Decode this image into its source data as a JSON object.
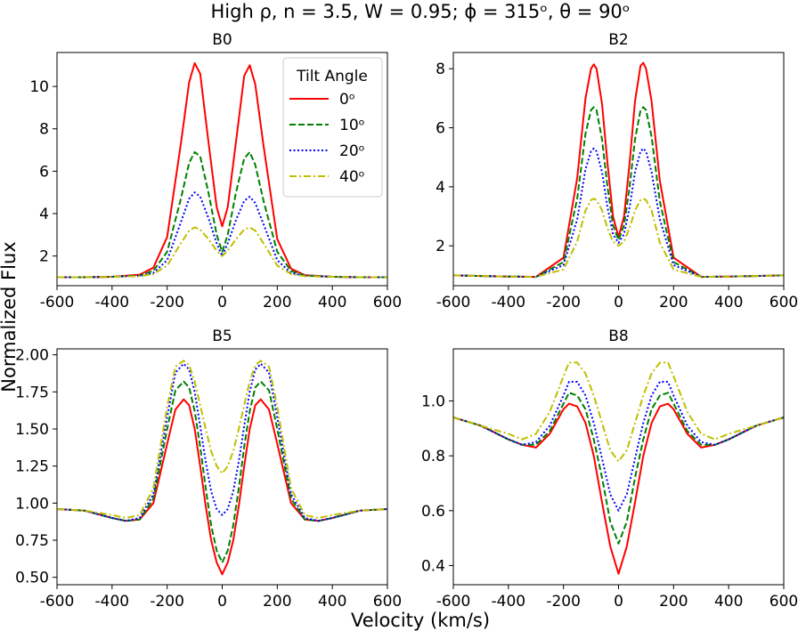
{
  "figure": {
    "suptitle": "High ρ, n = 3.5, W = 0.95; ϕ = 315ᵒ, θ = 90ᵒ",
    "xlabel": "Velocity (km/s)",
    "ylabel": "Normalized Flux"
  },
  "legend": {
    "title": "Tilt Angle",
    "entries": [
      "0ᵒ",
      "10ᵒ",
      "20ᵒ",
      "40ᵒ"
    ]
  },
  "colors": {
    "0": "#ff0000",
    "10": "#008000",
    "20": "#0000ff",
    "40": "#bfbf00"
  },
  "chart_data": [
    {
      "type": "line",
      "title": "B0",
      "xlim": [
        -600,
        600
      ],
      "ylim": [
        0.6,
        11.6
      ],
      "xticks": [
        -600,
        -400,
        -200,
        0,
        200,
        400,
        600
      ],
      "yticks": [
        2,
        4,
        6,
        8,
        10
      ],
      "ytick_labels": [
        "2",
        "4",
        "6",
        "8",
        "10"
      ],
      "x": [
        -600,
        -500,
        -400,
        -300,
        -250,
        -200,
        -150,
        -120,
        -100,
        -80,
        -50,
        -20,
        0,
        20,
        50,
        80,
        100,
        120,
        150,
        200,
        250,
        300,
        400,
        500,
        600
      ],
      "series": [
        {
          "name": "0ᵒ",
          "style": "solid",
          "values": [
            1.0,
            1.0,
            1.02,
            1.12,
            1.45,
            2.9,
            7.3,
            10.2,
            11.1,
            10.6,
            7.4,
            4.3,
            3.4,
            4.3,
            7.4,
            10.5,
            11.0,
            10.1,
            7.2,
            2.8,
            1.4,
            1.1,
            1.02,
            1.0,
            1.0
          ]
        },
        {
          "name": "10ᵒ",
          "style": "dashed",
          "values": [
            1.0,
            1.0,
            1.02,
            1.08,
            1.3,
            2.2,
            4.7,
            6.4,
            6.9,
            6.7,
            5.0,
            3.0,
            2.2,
            3.0,
            5.0,
            6.6,
            6.9,
            6.3,
            4.6,
            2.2,
            1.3,
            1.08,
            1.02,
            1.0,
            1.0
          ]
        },
        {
          "name": "20ᵒ",
          "style": "dotted",
          "values": [
            1.0,
            1.0,
            1.02,
            1.06,
            1.2,
            1.8,
            3.6,
            4.7,
            5.0,
            4.8,
            3.8,
            2.6,
            2.0,
            2.6,
            3.7,
            4.6,
            4.8,
            4.5,
            3.5,
            1.8,
            1.2,
            1.06,
            1.02,
            1.0,
            1.0
          ]
        },
        {
          "name": "40ᵒ",
          "style": "dashdot",
          "values": [
            1.0,
            1.0,
            1.02,
            1.05,
            1.15,
            1.55,
            2.6,
            3.2,
            3.35,
            3.25,
            2.8,
            2.25,
            2.0,
            2.25,
            2.8,
            3.25,
            3.35,
            3.2,
            2.6,
            1.55,
            1.15,
            1.05,
            1.02,
            1.0,
            1.0
          ]
        }
      ]
    },
    {
      "type": "line",
      "title": "B2",
      "xlim": [
        -600,
        600
      ],
      "ylim": [
        0.65,
        8.55
      ],
      "xticks": [
        -600,
        -400,
        -200,
        0,
        200,
        400,
        600
      ],
      "yticks": [
        2,
        4,
        6,
        8
      ],
      "ytick_labels": [
        "2",
        "4",
        "6",
        "8"
      ],
      "x": [
        -600,
        -500,
        -400,
        -300,
        -200,
        -150,
        -120,
        -100,
        -90,
        -80,
        -60,
        -40,
        -20,
        0,
        20,
        40,
        60,
        80,
        90,
        100,
        120,
        150,
        200,
        300,
        400,
        500,
        600
      ],
      "series": [
        {
          "name": "0ᵒ",
          "style": "solid",
          "values": [
            1.0,
            0.98,
            0.96,
            0.95,
            1.6,
            4.3,
            7.0,
            8.0,
            8.15,
            8.0,
            6.8,
            4.8,
            3.0,
            2.3,
            3.0,
            4.8,
            6.9,
            8.1,
            8.2,
            8.0,
            6.9,
            4.2,
            1.6,
            0.95,
            0.96,
            0.98,
            1.0
          ]
        },
        {
          "name": "10ᵒ",
          "style": "dashed",
          "values": [
            1.0,
            0.98,
            0.96,
            0.95,
            1.45,
            3.6,
            5.8,
            6.6,
            6.7,
            6.6,
            5.6,
            4.0,
            2.7,
            2.2,
            2.7,
            4.0,
            5.6,
            6.6,
            6.7,
            6.6,
            5.7,
            3.5,
            1.45,
            0.95,
            0.96,
            0.98,
            1.0
          ]
        },
        {
          "name": "20ᵒ",
          "style": "dotted",
          "values": [
            1.0,
            0.98,
            0.96,
            0.95,
            1.35,
            2.9,
            4.6,
            5.2,
            5.3,
            5.2,
            4.5,
            3.3,
            2.4,
            2.1,
            2.4,
            3.3,
            4.5,
            5.2,
            5.3,
            5.2,
            4.5,
            2.9,
            1.35,
            0.95,
            0.96,
            0.98,
            1.0
          ]
        },
        {
          "name": "40ᵒ",
          "style": "dashdot",
          "values": [
            1.0,
            0.98,
            0.96,
            0.95,
            1.2,
            2.15,
            3.2,
            3.55,
            3.6,
            3.55,
            3.2,
            2.6,
            2.15,
            2.0,
            2.15,
            2.6,
            3.2,
            3.55,
            3.6,
            3.55,
            3.2,
            2.1,
            1.2,
            0.95,
            0.96,
            0.98,
            1.0
          ]
        }
      ]
    },
    {
      "type": "line",
      "title": "B5",
      "xlim": [
        -600,
        600
      ],
      "ylim": [
        0.45,
        2.04
      ],
      "xticks": [
        -600,
        -400,
        -200,
        0,
        200,
        400,
        600
      ],
      "yticks": [
        0.5,
        0.75,
        1.0,
        1.25,
        1.5,
        1.75,
        2.0
      ],
      "ytick_labels": [
        "0.50",
        "0.75",
        "1.00",
        "1.25",
        "1.50",
        "1.75",
        "2.00"
      ],
      "x": [
        -600,
        -500,
        -400,
        -350,
        -300,
        -250,
        -200,
        -170,
        -140,
        -120,
        -100,
        -80,
        -60,
        -40,
        -20,
        0,
        20,
        40,
        60,
        80,
        100,
        120,
        140,
        170,
        200,
        250,
        300,
        350,
        400,
        500,
        600
      ],
      "series": [
        {
          "name": "0ᵒ",
          "style": "solid",
          "values": [
            0.96,
            0.95,
            0.9,
            0.88,
            0.89,
            1.0,
            1.4,
            1.63,
            1.7,
            1.66,
            1.5,
            1.25,
            0.98,
            0.75,
            0.6,
            0.52,
            0.6,
            0.75,
            0.98,
            1.25,
            1.5,
            1.66,
            1.7,
            1.63,
            1.4,
            1.0,
            0.89,
            0.88,
            0.9,
            0.95,
            0.96
          ]
        },
        {
          "name": "10ᵒ",
          "style": "dashed",
          "values": [
            0.96,
            0.95,
            0.9,
            0.88,
            0.89,
            1.03,
            1.5,
            1.76,
            1.82,
            1.78,
            1.62,
            1.38,
            1.1,
            0.85,
            0.68,
            0.6,
            0.68,
            0.85,
            1.1,
            1.38,
            1.62,
            1.78,
            1.82,
            1.76,
            1.5,
            1.03,
            0.89,
            0.88,
            0.9,
            0.95,
            0.96
          ]
        },
        {
          "name": "20ᵒ",
          "style": "dotted",
          "values": [
            0.96,
            0.95,
            0.9,
            0.88,
            0.9,
            1.06,
            1.58,
            1.88,
            1.94,
            1.9,
            1.75,
            1.52,
            1.28,
            1.08,
            0.96,
            0.92,
            0.96,
            1.08,
            1.28,
            1.52,
            1.75,
            1.9,
            1.94,
            1.88,
            1.58,
            1.06,
            0.9,
            0.88,
            0.9,
            0.95,
            0.96
          ]
        },
        {
          "name": "40ᵒ",
          "style": "dashdot",
          "values": [
            0.96,
            0.95,
            0.92,
            0.9,
            0.92,
            1.1,
            1.65,
            1.92,
            1.96,
            1.93,
            1.82,
            1.66,
            1.5,
            1.35,
            1.25,
            1.2,
            1.25,
            1.35,
            1.5,
            1.66,
            1.82,
            1.93,
            1.96,
            1.92,
            1.65,
            1.1,
            0.92,
            0.9,
            0.92,
            0.95,
            0.96
          ]
        }
      ]
    },
    {
      "type": "line",
      "title": "B8",
      "xlim": [
        -600,
        600
      ],
      "ylim": [
        0.33,
        1.19
      ],
      "xticks": [
        -600,
        -400,
        -200,
        0,
        200,
        400,
        600
      ],
      "yticks": [
        0.4,
        0.6,
        0.8,
        1.0
      ],
      "ytick_labels": [
        "0.4",
        "0.6",
        "0.8",
        "1.0"
      ],
      "x": [
        -600,
        -500,
        -400,
        -350,
        -300,
        -250,
        -200,
        -180,
        -150,
        -120,
        -90,
        -60,
        -30,
        0,
        30,
        60,
        90,
        120,
        150,
        180,
        200,
        250,
        300,
        350,
        400,
        500,
        600
      ],
      "series": [
        {
          "name": "0ᵒ",
          "style": "solid",
          "values": [
            0.94,
            0.91,
            0.86,
            0.84,
            0.83,
            0.88,
            0.97,
            0.99,
            0.98,
            0.92,
            0.8,
            0.63,
            0.47,
            0.37,
            0.47,
            0.63,
            0.8,
            0.92,
            0.98,
            0.99,
            0.97,
            0.88,
            0.83,
            0.84,
            0.86,
            0.91,
            0.94
          ]
        },
        {
          "name": "10ᵒ",
          "style": "dashed",
          "values": [
            0.94,
            0.91,
            0.86,
            0.84,
            0.84,
            0.89,
            0.99,
            1.03,
            1.02,
            0.97,
            0.86,
            0.72,
            0.56,
            0.48,
            0.56,
            0.72,
            0.86,
            0.97,
            1.02,
            1.03,
            0.99,
            0.89,
            0.84,
            0.84,
            0.86,
            0.91,
            0.94
          ]
        },
        {
          "name": "20ᵒ",
          "style": "dotted",
          "values": [
            0.94,
            0.91,
            0.86,
            0.84,
            0.85,
            0.91,
            1.02,
            1.07,
            1.07,
            1.02,
            0.92,
            0.79,
            0.66,
            0.6,
            0.66,
            0.79,
            0.92,
            1.02,
            1.07,
            1.07,
            1.02,
            0.91,
            0.85,
            0.84,
            0.86,
            0.91,
            0.94
          ]
        },
        {
          "name": "40ᵒ",
          "style": "dashdot",
          "values": [
            0.94,
            0.91,
            0.88,
            0.86,
            0.88,
            0.96,
            1.09,
            1.14,
            1.14,
            1.1,
            1.02,
            0.92,
            0.82,
            0.78,
            0.82,
            0.92,
            1.02,
            1.1,
            1.14,
            1.14,
            1.09,
            0.96,
            0.88,
            0.86,
            0.88,
            0.91,
            0.94
          ]
        }
      ]
    }
  ]
}
